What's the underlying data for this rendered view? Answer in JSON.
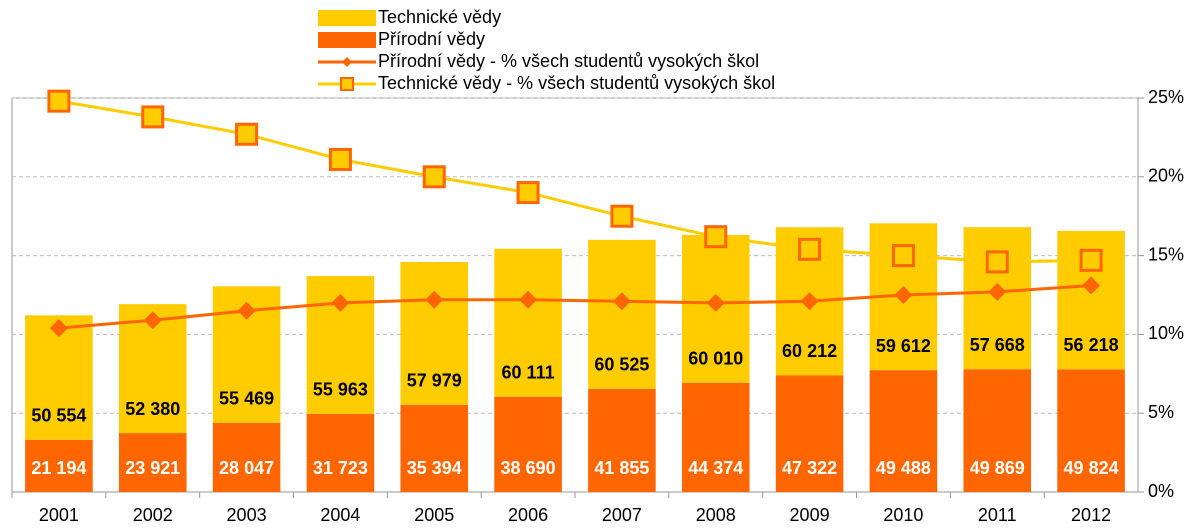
{
  "chart_data": {
    "type": "bar",
    "stacked": true,
    "categories": [
      "2001",
      "2002",
      "2003",
      "2004",
      "2005",
      "2006",
      "2007",
      "2008",
      "2009",
      "2010",
      "2011",
      "2012"
    ],
    "series": [
      {
        "name": "Přírodní vědy",
        "color": "#FF6600",
        "values": [
          21194,
          23921,
          28047,
          31723,
          35394,
          38690,
          41855,
          44374,
          47322,
          49488,
          49869,
          49824
        ],
        "value_labels": [
          "21 194",
          "23 921",
          "28 047",
          "31 723",
          "35 394",
          "38 690",
          "41 855",
          "44 374",
          "47 322",
          "49 488",
          "49 869",
          "49 824"
        ]
      },
      {
        "name": "Technické vědy",
        "color": "#FFCC00",
        "values": [
          50554,
          52380,
          55469,
          55963,
          57979,
          60111,
          60525,
          60010,
          60212,
          59612,
          57668,
          56218
        ],
        "value_labels": [
          "50 554",
          "52 380",
          "55 469",
          "55 963",
          "57 979",
          "60 111",
          "60 525",
          "60 010",
          "60 212",
          "59 612",
          "57 668",
          "56 218"
        ]
      },
      {
        "name": "Přírodní vědy - % všech studentů vysokých škol",
        "type": "line",
        "axis": "y2",
        "color": "#FF6600",
        "marker": "diamond",
        "values": [
          10.4,
          10.9,
          11.5,
          12.0,
          12.2,
          12.2,
          12.1,
          12.0,
          12.1,
          12.5,
          12.7,
          13.1
        ]
      },
      {
        "name": "Technické vědy - % všech studentů vysokých škol",
        "type": "line",
        "axis": "y2",
        "color": "#FFCC00",
        "marker": "square",
        "marker_edge": "#FF6600",
        "values": [
          24.8,
          23.8,
          22.7,
          21.1,
          20.0,
          19.0,
          17.5,
          16.2,
          15.4,
          15.0,
          14.6,
          14.7
        ]
      }
    ],
    "legend_order": [
      1,
      0,
      2,
      3
    ],
    "ylim": [
      0,
      160000
    ],
    "y2lim": [
      0,
      25
    ],
    "y2ticks": [
      {
        "value": 0,
        "label": "0%"
      },
      {
        "value": 5,
        "label": "5%"
      },
      {
        "value": 10,
        "label": "10%"
      },
      {
        "value": 15,
        "label": "15%"
      },
      {
        "value": 20,
        "label": "20%"
      },
      {
        "value": 25,
        "label": "25%"
      }
    ],
    "grid": true
  }
}
